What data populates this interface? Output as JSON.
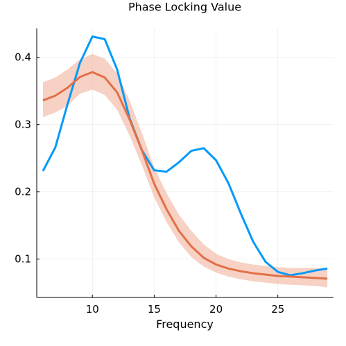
{
  "chart_data": {
    "type": "line",
    "title": "Phase Locking Value",
    "xlabel": "Frequency",
    "ylabel": "",
    "xlim": [
      5.5,
      29.5
    ],
    "ylim": [
      0.043,
      0.443
    ],
    "xticks": [
      10,
      15,
      20,
      25
    ],
    "yticks": [
      0.1,
      0.2,
      0.3,
      0.4
    ],
    "xtick_labels": [
      "10",
      "15",
      "20",
      "25"
    ],
    "ytick_labels": [
      "0.1",
      "0.2",
      "0.3",
      "0.4"
    ],
    "grid": true,
    "legend": "none",
    "x": [
      6,
      7,
      8,
      9,
      10,
      11,
      12,
      13,
      14,
      15,
      16,
      17,
      18,
      19,
      20,
      21,
      22,
      23,
      24,
      25,
      26,
      27,
      28,
      29
    ],
    "series": [
      {
        "color": "#009af9",
        "values": [
          0.231,
          0.266,
          0.331,
          0.392,
          0.431,
          0.427,
          0.382,
          0.31,
          0.262,
          0.232,
          0.23,
          0.244,
          0.261,
          0.265,
          0.247,
          0.213,
          0.168,
          0.126,
          0.096,
          0.081,
          0.076,
          0.079,
          0.083,
          0.086
        ]
      },
      {
        "color": "#e26f46",
        "values": [
          0.336,
          0.343,
          0.355,
          0.371,
          0.378,
          0.37,
          0.348,
          0.308,
          0.262,
          0.212,
          0.174,
          0.142,
          0.119,
          0.102,
          0.092,
          0.086,
          0.082,
          0.079,
          0.077,
          0.075,
          0.074,
          0.073,
          0.072,
          0.071
        ],
        "band_lower": [
          0.311,
          0.318,
          0.328,
          0.346,
          0.352,
          0.344,
          0.322,
          0.284,
          0.24,
          0.192,
          0.155,
          0.125,
          0.103,
          0.089,
          0.08,
          0.074,
          0.07,
          0.067,
          0.065,
          0.063,
          0.062,
          0.061,
          0.06,
          0.058
        ],
        "band_upper": [
          0.363,
          0.37,
          0.382,
          0.397,
          0.405,
          0.398,
          0.376,
          0.336,
          0.288,
          0.236,
          0.198,
          0.166,
          0.142,
          0.122,
          0.108,
          0.1,
          0.095,
          0.092,
          0.09,
          0.088,
          0.087,
          0.087,
          0.087,
          0.087
        ],
        "band_color": "#f2b5a0"
      }
    ]
  }
}
